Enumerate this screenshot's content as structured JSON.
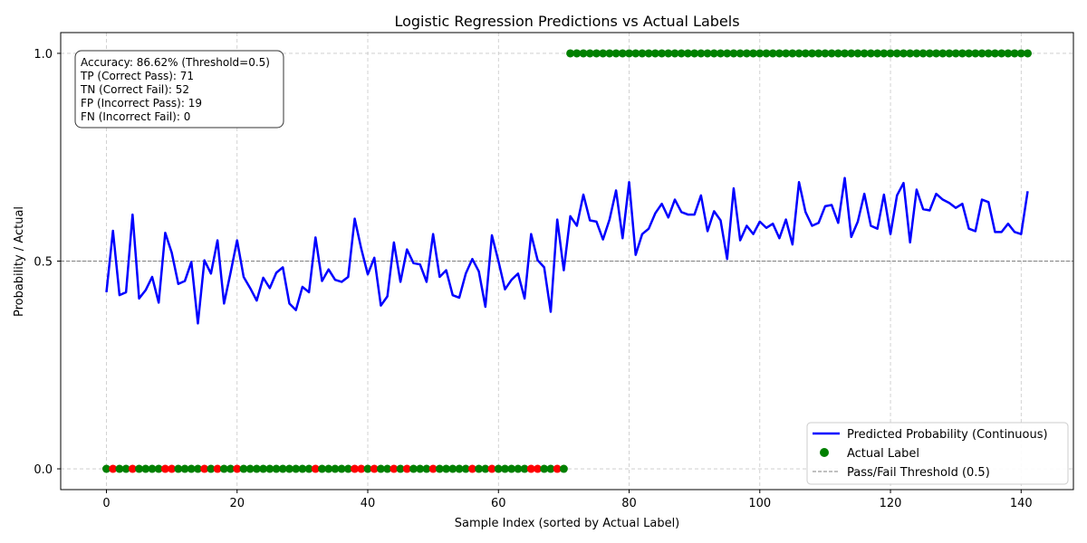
{
  "chart_data": {
    "type": "line",
    "title": "Logistic Regression Predictions vs Actual Labels",
    "xlabel": "Sample Index (sorted by Actual Label)",
    "ylabel": "Probability / Actual",
    "xlim": [
      -7,
      148
    ],
    "ylim": [
      -0.05,
      1.05
    ],
    "xticks": [
      0,
      20,
      40,
      60,
      80,
      100,
      120,
      140
    ],
    "yticks": [
      0.0,
      0.5,
      1.0
    ],
    "ytick_labels": [
      "0.0",
      "0.5",
      "1.0"
    ],
    "grid": true,
    "legend_position": "lower-right",
    "threshold": {
      "name": "Pass/Fail Threshold (0.5)",
      "value": 0.5,
      "color": "#808080"
    },
    "series": [
      {
        "name": "Predicted Probability (Continuous)",
        "kind": "line",
        "color": "#0000ff",
        "y": [
          0.425,
          0.573,
          0.418,
          0.425,
          0.612,
          0.41,
          0.43,
          0.462,
          0.4,
          0.568,
          0.52,
          0.445,
          0.452,
          0.498,
          0.35,
          0.502,
          0.47,
          0.55,
          0.398,
          0.472,
          0.55,
          0.462,
          0.435,
          0.405,
          0.46,
          0.435,
          0.472,
          0.485,
          0.398,
          0.382,
          0.438,
          0.425,
          0.557,
          0.452,
          0.48,
          0.455,
          0.45,
          0.462,
          0.602,
          0.53,
          0.468,
          0.508,
          0.393,
          0.415,
          0.545,
          0.45,
          0.528,
          0.495,
          0.492,
          0.45,
          0.565,
          0.462,
          0.478,
          0.418,
          0.412,
          0.47,
          0.505,
          0.475,
          0.39,
          0.562,
          0.5,
          0.432,
          0.455,
          0.47,
          0.41,
          0.565,
          0.502,
          0.485,
          0.378,
          0.6,
          0.478,
          0.608,
          0.585,
          0.66,
          0.598,
          0.595,
          0.552,
          0.6,
          0.67,
          0.555,
          0.69,
          0.515,
          0.565,
          0.578,
          0.615,
          0.638,
          0.605,
          0.648,
          0.618,
          0.612,
          0.612,
          0.658,
          0.572,
          0.62,
          0.598,
          0.505,
          0.675,
          0.55,
          0.585,
          0.565,
          0.595,
          0.58,
          0.59,
          0.555,
          0.6,
          0.54,
          0.69,
          0.618,
          0.585,
          0.592,
          0.632,
          0.635,
          0.592,
          0.7,
          0.558,
          0.595,
          0.662,
          0.585,
          0.578,
          0.66,
          0.565,
          0.658,
          0.688,
          0.545,
          0.672,
          0.625,
          0.622,
          0.662,
          0.648,
          0.64,
          0.628,
          0.638,
          0.578,
          0.572,
          0.648,
          0.642,
          0.57,
          0.57,
          0.59,
          0.57,
          0.565,
          0.668
        ]
      },
      {
        "name": "Actual Label",
        "kind": "scatter",
        "color": "#008000",
        "mismatch_color": "#ff0000",
        "x_start": 0,
        "values": [
          0,
          0,
          0,
          0,
          0,
          0,
          0,
          0,
          0,
          0,
          0,
          0,
          0,
          0,
          0,
          0,
          0,
          0,
          0,
          0,
          0,
          0,
          0,
          0,
          0,
          0,
          0,
          0,
          0,
          0,
          0,
          0,
          0,
          0,
          0,
          0,
          0,
          0,
          0,
          0,
          0,
          0,
          0,
          0,
          0,
          0,
          0,
          0,
          0,
          0,
          0,
          0,
          0,
          0,
          0,
          0,
          0,
          0,
          0,
          0,
          0,
          0,
          0,
          0,
          0,
          0,
          0,
          0,
          0,
          0,
          0,
          1,
          1,
          1,
          1,
          1,
          1,
          1,
          1,
          1,
          1,
          1,
          1,
          1,
          1,
          1,
          1,
          1,
          1,
          1,
          1,
          1,
          1,
          1,
          1,
          1,
          1,
          1,
          1,
          1,
          1,
          1,
          1,
          1,
          1,
          1,
          1,
          1,
          1,
          1,
          1,
          1,
          1,
          1,
          1,
          1,
          1,
          1,
          1,
          1,
          1,
          1,
          1,
          1,
          1,
          1,
          1,
          1,
          1,
          1,
          1,
          1,
          1,
          1,
          1,
          1,
          1,
          1,
          1,
          1,
          1,
          1
        ],
        "mismatch_indices": [
          1,
          4,
          9,
          10,
          15,
          17,
          20,
          32,
          38,
          39,
          41,
          44,
          46,
          50,
          56,
          59,
          65,
          66,
          69
        ]
      }
    ],
    "annotation_lines": [
      "Accuracy: 86.62% (Threshold=0.5)",
      "TP (Correct Pass): 71",
      "TN (Correct Fail): 52",
      "FP (Incorrect Pass): 19",
      "FN (Incorrect Fail): 0"
    ],
    "legend": [
      {
        "label": "Predicted Probability (Continuous)",
        "marker": "line",
        "color": "#0000ff"
      },
      {
        "label": "Actual Label",
        "marker": "dot",
        "color": "#008000"
      },
      {
        "label": "Pass/Fail Threshold (0.5)",
        "marker": "dashed-line",
        "color": "#808080"
      }
    ]
  }
}
